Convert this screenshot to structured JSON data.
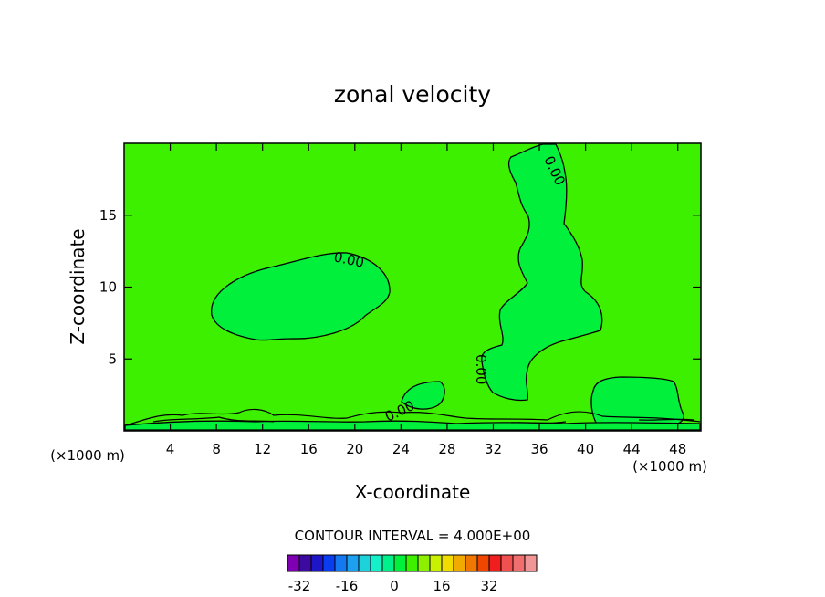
{
  "chart_data": {
    "type": "heatmap",
    "title": "zonal velocity",
    "xlabel": "X-coordinate",
    "ylabel": "Z-coordinate",
    "x_unit": "(×1000 m)",
    "z_unit": "(×1000 m)",
    "xlim": [
      0,
      50
    ],
    "ylim": [
      0,
      20
    ],
    "x_ticks": [
      4,
      8,
      12,
      16,
      20,
      24,
      28,
      32,
      36,
      40,
      44,
      48
    ],
    "y_ticks": [
      5,
      10,
      15
    ],
    "contour_interval_text": "CONTOUR INTERVAL = 4.000E+00",
    "contour_labels": [
      "0.00",
      "0.00",
      "0.00",
      "0.00"
    ],
    "colorbar": {
      "tick_labels": [
        "-32",
        "-16",
        "0",
        "16",
        "32"
      ],
      "tick_values": [
        -32,
        -16,
        0,
        16,
        32
      ],
      "colors": [
        "#7f00b2",
        "#3c0aa0",
        "#1e14c8",
        "#0a3cf0",
        "#1478f0",
        "#1ea0f0",
        "#1ed2dc",
        "#14f0c8",
        "#00f08c",
        "#00f03c",
        "#3cf000",
        "#8cf000",
        "#c8f000",
        "#f0dc00",
        "#f0aa00",
        "#f07800",
        "#f04600",
        "#f01e1e",
        "#f05050",
        "#f06e6e",
        "#f09696"
      ]
    },
    "background_color": "#3cf000",
    "region_color": "#00f03c",
    "line_color": "#000000"
  }
}
